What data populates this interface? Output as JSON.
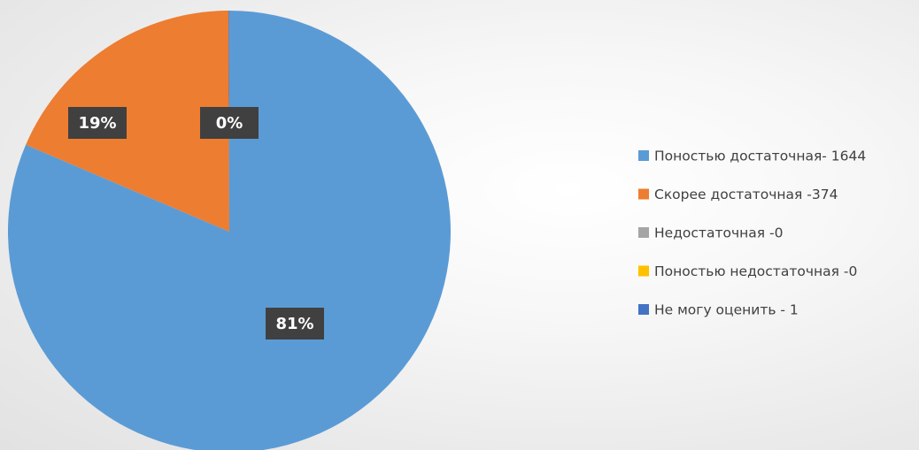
{
  "chart_data": {
    "type": "pie",
    "title": "",
    "legend_position": "right",
    "series": [
      {
        "categories": [
          "Поностью достаточная- 1644",
          "Скорее достаточная -374",
          "Недостаточная -0",
          "Поностью недостаточная -0",
          "Не могу оценить - 1"
        ],
        "values": [
          1644,
          374,
          0,
          0,
          1
        ],
        "colors": [
          "#5B9BD5",
          "#ED7D31",
          "#A5A5A5",
          "#FFC000",
          "#4472C4"
        ],
        "data_labels": [
          "81%",
          "19%",
          "0%",
          "0%",
          "0%"
        ]
      }
    ]
  }
}
